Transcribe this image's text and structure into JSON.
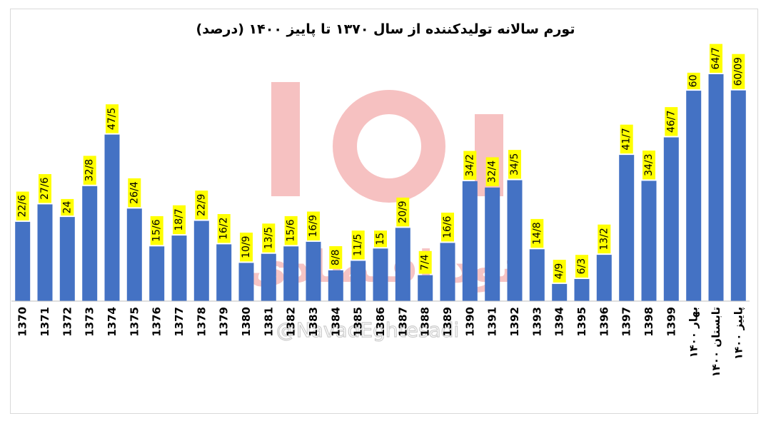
{
  "chart_data": {
    "type": "bar",
    "title": "تورم سالانه تولیدکننده از سال ۱۳۷۰ تا پاییز ۱۴۰۰ (درصد)",
    "xlabel": "",
    "ylabel": "",
    "ylim": [
      0,
      70
    ],
    "grid": false,
    "legend": "none",
    "bar_color": "#4472C4",
    "label_bg_color": "#FFFF00",
    "categories": [
      "1370",
      "1371",
      "1372",
      "1373",
      "1374",
      "1375",
      "1376",
      "1377",
      "1378",
      "1379",
      "1380",
      "1381",
      "1382",
      "1383",
      "1384",
      "1385",
      "1386",
      "1387",
      "1388",
      "1389",
      "1390",
      "1391",
      "1392",
      "1393",
      "1394",
      "1395",
      "1396",
      "1397",
      "1398",
      "1399",
      "بهار ۱۴۰۰",
      "تابستان ۱۴۰۰",
      "پاییز ۱۴۰۰"
    ],
    "values": [
      22.6,
      27.6,
      24,
      32.8,
      47.5,
      26.4,
      15.6,
      18.7,
      22.9,
      16.2,
      10.9,
      13.5,
      15.6,
      16.9,
      8.8,
      11.5,
      15,
      20.9,
      7.4,
      16.6,
      34.2,
      32.4,
      34.5,
      14.8,
      4.9,
      6.3,
      13.2,
      41.7,
      34.3,
      46.7,
      60,
      64.7,
      60.09
    ],
    "value_labels": [
      "22/6",
      "27/6",
      "24",
      "32/8",
      "47/5",
      "26/4",
      "15/6",
      "18/7",
      "22/9",
      "16/2",
      "10/9",
      "13/5",
      "15/6",
      "16/9",
      "8/8",
      "11/5",
      "15",
      "20/9",
      "7/4",
      "16/6",
      "34/2",
      "32/4",
      "34/5",
      "14/8",
      "4/9",
      "6/3",
      "13/2",
      "41/7",
      "34/3",
      "46/7",
      "60",
      "64/7",
      "60/09"
    ]
  },
  "watermark": {
    "text": "نود اقتصادی",
    "handle": "@NavadEghtesadi",
    "color": "#f4b6b6"
  }
}
